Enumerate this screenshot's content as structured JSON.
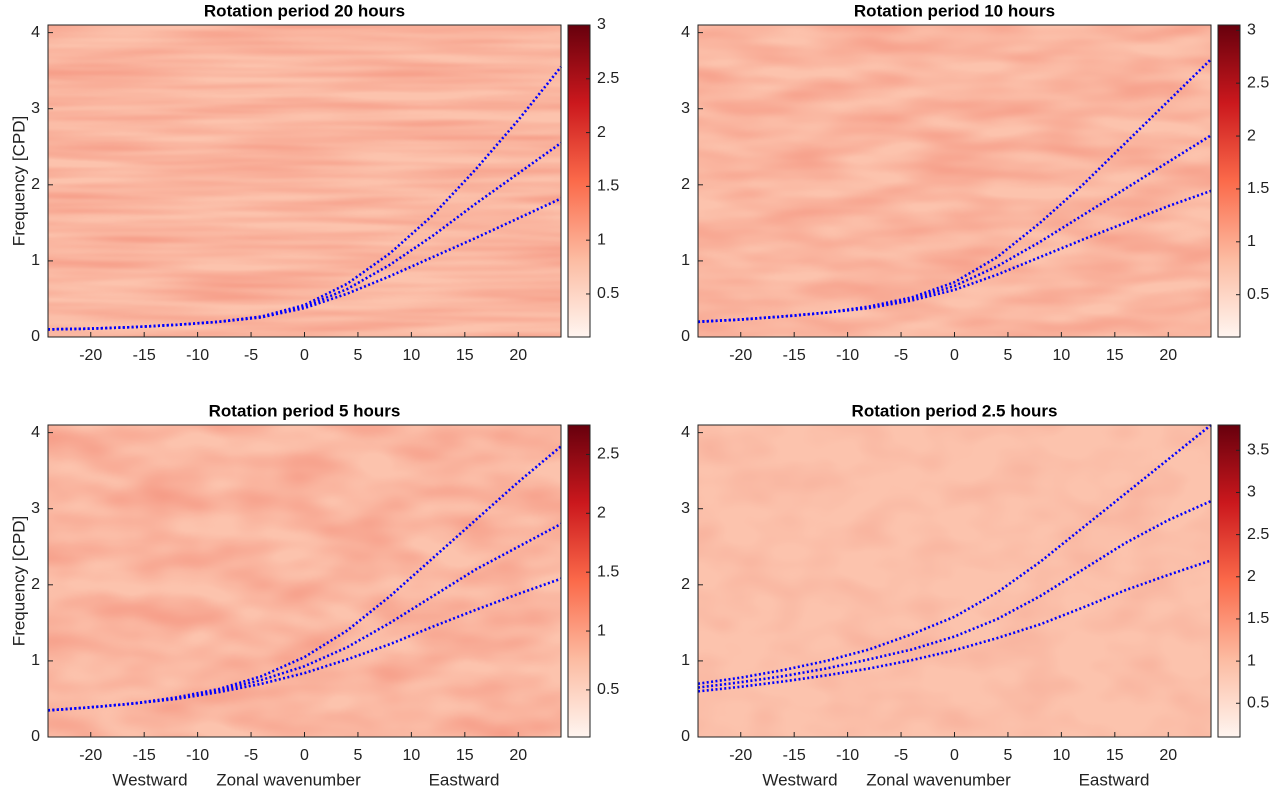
{
  "chart_data": [
    {
      "type": "line",
      "title": "Rotation period 20 hours",
      "ylabel": "Frequency [CPD]",
      "x": [
        -24,
        -20,
        -16,
        -12,
        -8,
        -4,
        0,
        4,
        8,
        12,
        16,
        20,
        24
      ],
      "series": [
        {
          "color": "#0000ff",
          "values": [
            0.1,
            0.11,
            0.13,
            0.16,
            0.2,
            0.27,
            0.42,
            0.7,
            1.1,
            1.6,
            2.2,
            2.85,
            3.55
          ]
        },
        {
          "color": "#0000ff",
          "values": [
            0.1,
            0.11,
            0.13,
            0.16,
            0.2,
            0.26,
            0.4,
            0.63,
            0.95,
            1.33,
            1.75,
            2.15,
            2.55
          ]
        },
        {
          "color": "#0000ff",
          "values": [
            0.1,
            0.11,
            0.13,
            0.16,
            0.2,
            0.26,
            0.38,
            0.57,
            0.8,
            1.05,
            1.3,
            1.56,
            1.82
          ]
        }
      ],
      "xlim": [
        -24,
        24
      ],
      "xticks": [
        -20,
        -15,
        -10,
        -5,
        0,
        5,
        10,
        15,
        20
      ],
      "ylim": [
        0,
        4.1
      ],
      "yticks": [
        0,
        1,
        2,
        3,
        4
      ],
      "colorbar": {
        "lim": [
          0.1,
          3
        ],
        "ticks": [
          0.5,
          1,
          1.5,
          2,
          2.5,
          3
        ]
      }
    },
    {
      "type": "line",
      "title": "Rotation period 10 hours",
      "x": [
        -24,
        -20,
        -16,
        -12,
        -8,
        -4,
        0,
        4,
        8,
        12,
        16,
        20,
        24
      ],
      "series": [
        {
          "color": "#0000ff",
          "values": [
            0.2,
            0.23,
            0.27,
            0.32,
            0.4,
            0.52,
            0.72,
            1.05,
            1.5,
            2.0,
            2.55,
            3.1,
            3.65
          ]
        },
        {
          "color": "#0000ff",
          "values": [
            0.2,
            0.23,
            0.27,
            0.32,
            0.39,
            0.5,
            0.67,
            0.93,
            1.25,
            1.6,
            1.95,
            2.3,
            2.65
          ]
        },
        {
          "color": "#0000ff",
          "values": [
            0.2,
            0.23,
            0.27,
            0.32,
            0.38,
            0.48,
            0.62,
            0.82,
            1.05,
            1.28,
            1.5,
            1.72,
            1.92
          ]
        }
      ],
      "xlim": [
        -24,
        24
      ],
      "xticks": [
        -20,
        -15,
        -10,
        -5,
        0,
        5,
        10,
        15,
        20
      ],
      "ylim": [
        0,
        4.1
      ],
      "yticks": [
        0,
        1,
        2,
        3,
        4
      ],
      "colorbar": {
        "lim": [
          0.1,
          3.05
        ],
        "ticks": [
          0.5,
          1,
          1.5,
          2,
          2.5,
          3
        ]
      }
    },
    {
      "type": "line",
      "title": "Rotation period 5 hours",
      "ylabel": "Frequency [CPD]",
      "xlabel": "Zonal wavenumber",
      "xlabel_left": "Westward",
      "xlabel_right": "Eastward",
      "x": [
        -24,
        -20,
        -16,
        -12,
        -8,
        -4,
        0,
        4,
        8,
        12,
        16,
        20,
        24
      ],
      "series": [
        {
          "color": "#0000ff",
          "values": [
            0.35,
            0.39,
            0.44,
            0.52,
            0.63,
            0.8,
            1.05,
            1.4,
            1.85,
            2.35,
            2.85,
            3.35,
            3.82
          ]
        },
        {
          "color": "#0000ff",
          "values": [
            0.35,
            0.39,
            0.44,
            0.51,
            0.61,
            0.75,
            0.93,
            1.18,
            1.5,
            1.85,
            2.2,
            2.5,
            2.8
          ]
        },
        {
          "color": "#0000ff",
          "values": [
            0.35,
            0.39,
            0.44,
            0.5,
            0.59,
            0.7,
            0.84,
            1.02,
            1.22,
            1.45,
            1.67,
            1.88,
            2.08
          ]
        }
      ],
      "xlim": [
        -24,
        24
      ],
      "xticks": [
        -20,
        -15,
        -10,
        -5,
        0,
        5,
        10,
        15,
        20
      ],
      "ylim": [
        0,
        4.1
      ],
      "yticks": [
        0,
        1,
        2,
        3,
        4
      ],
      "colorbar": {
        "lim": [
          0.1,
          2.75
        ],
        "ticks": [
          0.5,
          1,
          1.5,
          2,
          2.5
        ]
      }
    },
    {
      "type": "line",
      "title": "Rotation period 2.5 hours",
      "xlabel": "Zonal wavenumber",
      "xlabel_left": "Westward",
      "xlabel_right": "Eastward",
      "x": [
        -24,
        -20,
        -16,
        -12,
        -8,
        -4,
        0,
        4,
        8,
        12,
        16,
        20,
        24
      ],
      "series": [
        {
          "color": "#0000ff",
          "values": [
            0.7,
            0.78,
            0.88,
            1.0,
            1.15,
            1.35,
            1.58,
            1.9,
            2.3,
            2.75,
            3.2,
            3.65,
            4.1
          ]
        },
        {
          "color": "#0000ff",
          "values": [
            0.65,
            0.72,
            0.8,
            0.9,
            1.02,
            1.15,
            1.32,
            1.55,
            1.85,
            2.2,
            2.55,
            2.85,
            3.1
          ]
        },
        {
          "color": "#0000ff",
          "values": [
            0.6,
            0.66,
            0.73,
            0.81,
            0.9,
            1.01,
            1.14,
            1.3,
            1.48,
            1.7,
            1.93,
            2.13,
            2.32
          ]
        }
      ],
      "xlim": [
        -24,
        24
      ],
      "xticks": [
        -20,
        -15,
        -10,
        -5,
        0,
        5,
        10,
        15,
        20
      ],
      "ylim": [
        0,
        4.1
      ],
      "yticks": [
        0,
        1,
        2,
        3,
        4
      ],
      "colorbar": {
        "lim": [
          0.1,
          3.8
        ],
        "ticks": [
          0.5,
          1,
          1.5,
          2,
          2.5,
          3,
          3.5
        ]
      }
    }
  ]
}
